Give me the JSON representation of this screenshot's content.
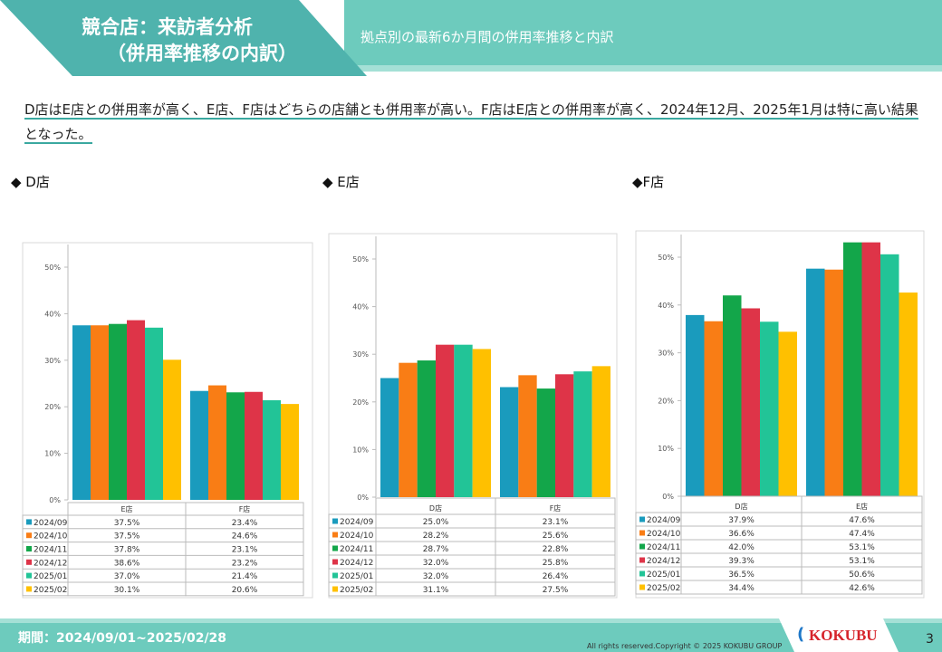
{
  "header": {
    "title_line1": "競合店：来訪者分析",
    "title_line2": "（併用率推移の内訳）",
    "subtitle": "拠点別の最新6か月間の併用率推移と内訳"
  },
  "summary": "D店はE店との併用率が高く、E店、F店はどちらの店舗とも併用率が高い。F店はE店との併用率が高く、2024年12月、2025年1月は特に高い結果となった。",
  "sections": [
    "◆ D店",
    "◆ E店",
    "◆F店"
  ],
  "series_colors": {
    "2024/09": "#1a9bbd",
    "2024/10": "#f97d15",
    "2024/11": "#13a64a",
    "2024/12": "#de3448",
    "2025/01": "#22c497",
    "2025/02": "#ffc000"
  },
  "chart_data": [
    {
      "type": "bar",
      "title": "",
      "categories": [
        "E店",
        "F店"
      ],
      "ylim": [
        0,
        50
      ],
      "yticks": [
        "0%",
        "10%",
        "20%",
        "30%",
        "40%",
        "50%"
      ],
      "series": [
        {
          "name": "2024/09",
          "values": [
            37.5,
            23.4
          ]
        },
        {
          "name": "2024/10",
          "values": [
            37.5,
            24.6
          ]
        },
        {
          "name": "2024/11",
          "values": [
            37.8,
            23.1
          ]
        },
        {
          "name": "2024/12",
          "values": [
            38.6,
            23.2
          ]
        },
        {
          "name": "2025/01",
          "values": [
            37.0,
            21.4
          ]
        },
        {
          "name": "2025/02",
          "values": [
            30.1,
            20.6
          ]
        }
      ],
      "table": [
        [
          "37.5%",
          "23.4%"
        ],
        [
          "37.5%",
          "24.6%"
        ],
        [
          "37.8%",
          "23.1%"
        ],
        [
          "38.6%",
          "23.2%"
        ],
        [
          "37.0%",
          "21.4%"
        ],
        [
          "30.1%",
          "20.6%"
        ]
      ]
    },
    {
      "type": "bar",
      "title": "",
      "categories": [
        "D店",
        "F店"
      ],
      "ylim": [
        0,
        50
      ],
      "yticks": [
        "0%",
        "10%",
        "20%",
        "30%",
        "40%",
        "50%"
      ],
      "series": [
        {
          "name": "2024/09",
          "values": [
            25.0,
            23.1
          ]
        },
        {
          "name": "2024/10",
          "values": [
            28.2,
            25.6
          ]
        },
        {
          "name": "2024/11",
          "values": [
            28.7,
            22.8
          ]
        },
        {
          "name": "2024/12",
          "values": [
            32.0,
            25.8
          ]
        },
        {
          "name": "2025/01",
          "values": [
            32.0,
            26.4
          ]
        },
        {
          "name": "2025/02",
          "values": [
            31.1,
            27.5
          ]
        }
      ],
      "table": [
        [
          "25.0%",
          "23.1%"
        ],
        [
          "28.2%",
          "25.6%"
        ],
        [
          "28.7%",
          "22.8%"
        ],
        [
          "32.0%",
          "25.8%"
        ],
        [
          "32.0%",
          "26.4%"
        ],
        [
          "31.1%",
          "27.5%"
        ]
      ]
    },
    {
      "type": "bar",
      "title": "",
      "categories": [
        "D店",
        "E店"
      ],
      "ylim": [
        0,
        50
      ],
      "yticks": [
        "0%",
        "10%",
        "20%",
        "30%",
        "40%",
        "50%"
      ],
      "series": [
        {
          "name": "2024/09",
          "values": [
            37.9,
            47.6
          ]
        },
        {
          "name": "2024/10",
          "values": [
            36.6,
            47.4
          ]
        },
        {
          "name": "2024/11",
          "values": [
            42.0,
            53.1
          ]
        },
        {
          "name": "2024/12",
          "values": [
            39.3,
            53.1
          ]
        },
        {
          "name": "2025/01",
          "values": [
            36.5,
            50.6
          ]
        },
        {
          "name": "2025/02",
          "values": [
            34.4,
            42.6
          ]
        }
      ],
      "table": [
        [
          "37.9%",
          "47.6%"
        ],
        [
          "36.6%",
          "47.4%"
        ],
        [
          "42.0%",
          "53.1%"
        ],
        [
          "39.3%",
          "53.1%"
        ],
        [
          "36.5%",
          "50.6%"
        ],
        [
          "34.4%",
          "42.6%"
        ]
      ]
    }
  ],
  "footer": {
    "period": "期間：2024/09/01~2025/02/28",
    "copyright": "All rights reserved.Copyright © 2025 KOKUBU GROUP",
    "logo": "KOKUBU",
    "page_number": "3"
  }
}
